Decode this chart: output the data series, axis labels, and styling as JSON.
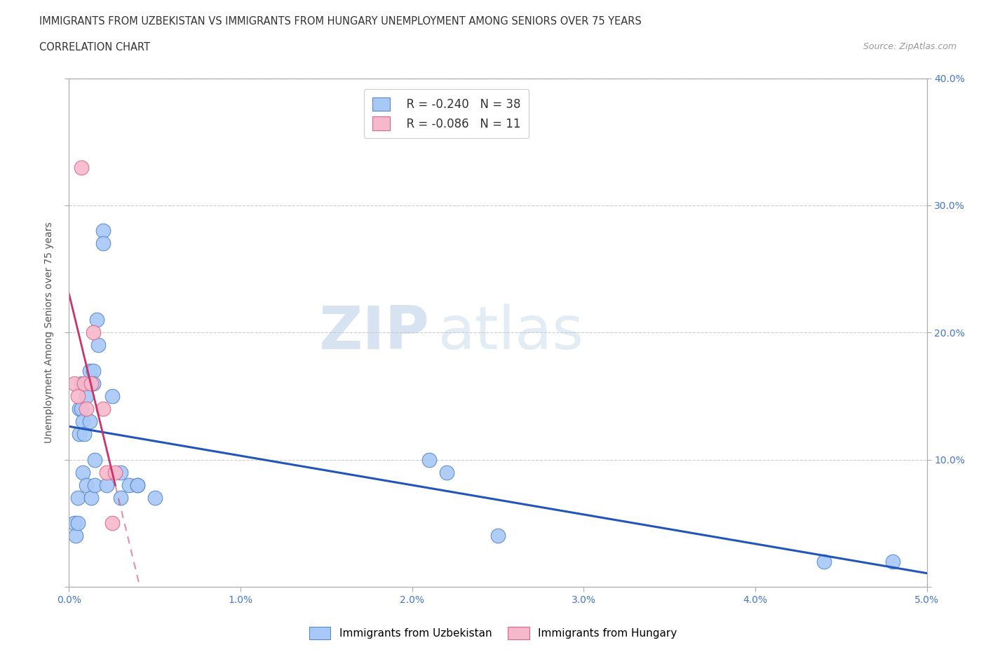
{
  "title_line1": "IMMIGRANTS FROM UZBEKISTAN VS IMMIGRANTS FROM HUNGARY UNEMPLOYMENT AMONG SENIORS OVER 75 YEARS",
  "title_line2": "CORRELATION CHART",
  "source": "Source: ZipAtlas.com",
  "ylabel": "Unemployment Among Seniors over 75 years",
  "xlim": [
    0.0,
    0.05
  ],
  "ylim": [
    0.0,
    0.4
  ],
  "xticks": [
    0.0,
    0.01,
    0.02,
    0.03,
    0.04,
    0.05
  ],
  "yticks": [
    0.0,
    0.1,
    0.2,
    0.3,
    0.4
  ],
  "ytick_labels_right": [
    "",
    "10.0%",
    "20.0%",
    "30.0%",
    "40.0%"
  ],
  "xtick_labels": [
    "0.0%",
    "1.0%",
    "2.0%",
    "3.0%",
    "4.0%",
    "5.0%"
  ],
  "uzbekistan_color": "#a8c8f8",
  "hungary_color": "#f8b8cc",
  "uzbekistan_edge": "#5588cc",
  "hungary_edge": "#dd6688",
  "trend_uzbekistan_color": "#2255bb",
  "trend_hungary_color": "#cc3366",
  "R_uzbekistan": -0.24,
  "N_uzbekistan": 38,
  "R_hungary": -0.086,
  "N_hungary": 11,
  "uzbekistan_x": [
    0.0003,
    0.0004,
    0.0005,
    0.0005,
    0.0006,
    0.0006,
    0.0007,
    0.0007,
    0.0008,
    0.0008,
    0.0009,
    0.001,
    0.001,
    0.001,
    0.0012,
    0.0012,
    0.0013,
    0.0014,
    0.0014,
    0.0015,
    0.0015,
    0.0016,
    0.0017,
    0.002,
    0.002,
    0.0022,
    0.0025,
    0.003,
    0.003,
    0.0035,
    0.004,
    0.004,
    0.005,
    0.021,
    0.022,
    0.025,
    0.044,
    0.048
  ],
  "uzbekistan_y": [
    0.05,
    0.04,
    0.07,
    0.05,
    0.14,
    0.12,
    0.16,
    0.14,
    0.13,
    0.09,
    0.12,
    0.16,
    0.15,
    0.08,
    0.17,
    0.13,
    0.07,
    0.17,
    0.16,
    0.1,
    0.08,
    0.21,
    0.19,
    0.28,
    0.27,
    0.08,
    0.15,
    0.09,
    0.07,
    0.08,
    0.08,
    0.08,
    0.07,
    0.1,
    0.09,
    0.04,
    0.02,
    0.02
  ],
  "hungary_x": [
    0.0003,
    0.0005,
    0.0007,
    0.0009,
    0.001,
    0.0013,
    0.0014,
    0.002,
    0.0022,
    0.0025,
    0.0027
  ],
  "hungary_y": [
    0.16,
    0.15,
    0.33,
    0.16,
    0.14,
    0.16,
    0.2,
    0.14,
    0.09,
    0.05,
    0.09
  ],
  "watermark_zip": "ZIP",
  "watermark_atlas": "atlas",
  "background_color": "#ffffff",
  "grid_color": "#cccccc",
  "tick_color": "#4477cc",
  "axis_color": "#aaaaaa",
  "title_color": "#333333",
  "source_color": "#999999",
  "ylabel_color": "#555555"
}
